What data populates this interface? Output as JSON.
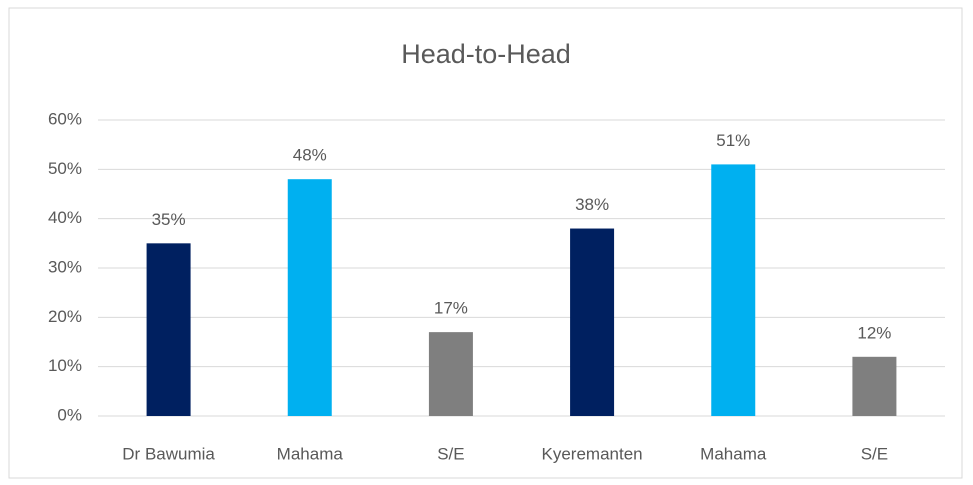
{
  "chart_data": {
    "type": "bar",
    "title": "Head-to-Head",
    "categories": [
      "Dr Bawumia",
      "Mahama",
      "S/E",
      "Kyeremanten",
      "Mahama",
      "S/E"
    ],
    "values": [
      35,
      48,
      17,
      38,
      51,
      12
    ],
    "value_labels": [
      "35%",
      "48%",
      "17%",
      "38%",
      "51%",
      "12%"
    ],
    "colors": [
      "#002060",
      "#00b0f0",
      "#7f7f7f",
      "#002060",
      "#00b0f0",
      "#7f7f7f"
    ],
    "ylim": [
      0,
      60
    ],
    "yticks": [
      {
        "value": 0,
        "label": "0%"
      },
      {
        "value": 10,
        "label": "10%"
      },
      {
        "value": 20,
        "label": "20%"
      },
      {
        "value": 30,
        "label": "30%"
      },
      {
        "value": 40,
        "label": "40%"
      },
      {
        "value": 50,
        "label": "50%"
      },
      {
        "value": 60,
        "label": "60%"
      }
    ],
    "grid": true
  }
}
